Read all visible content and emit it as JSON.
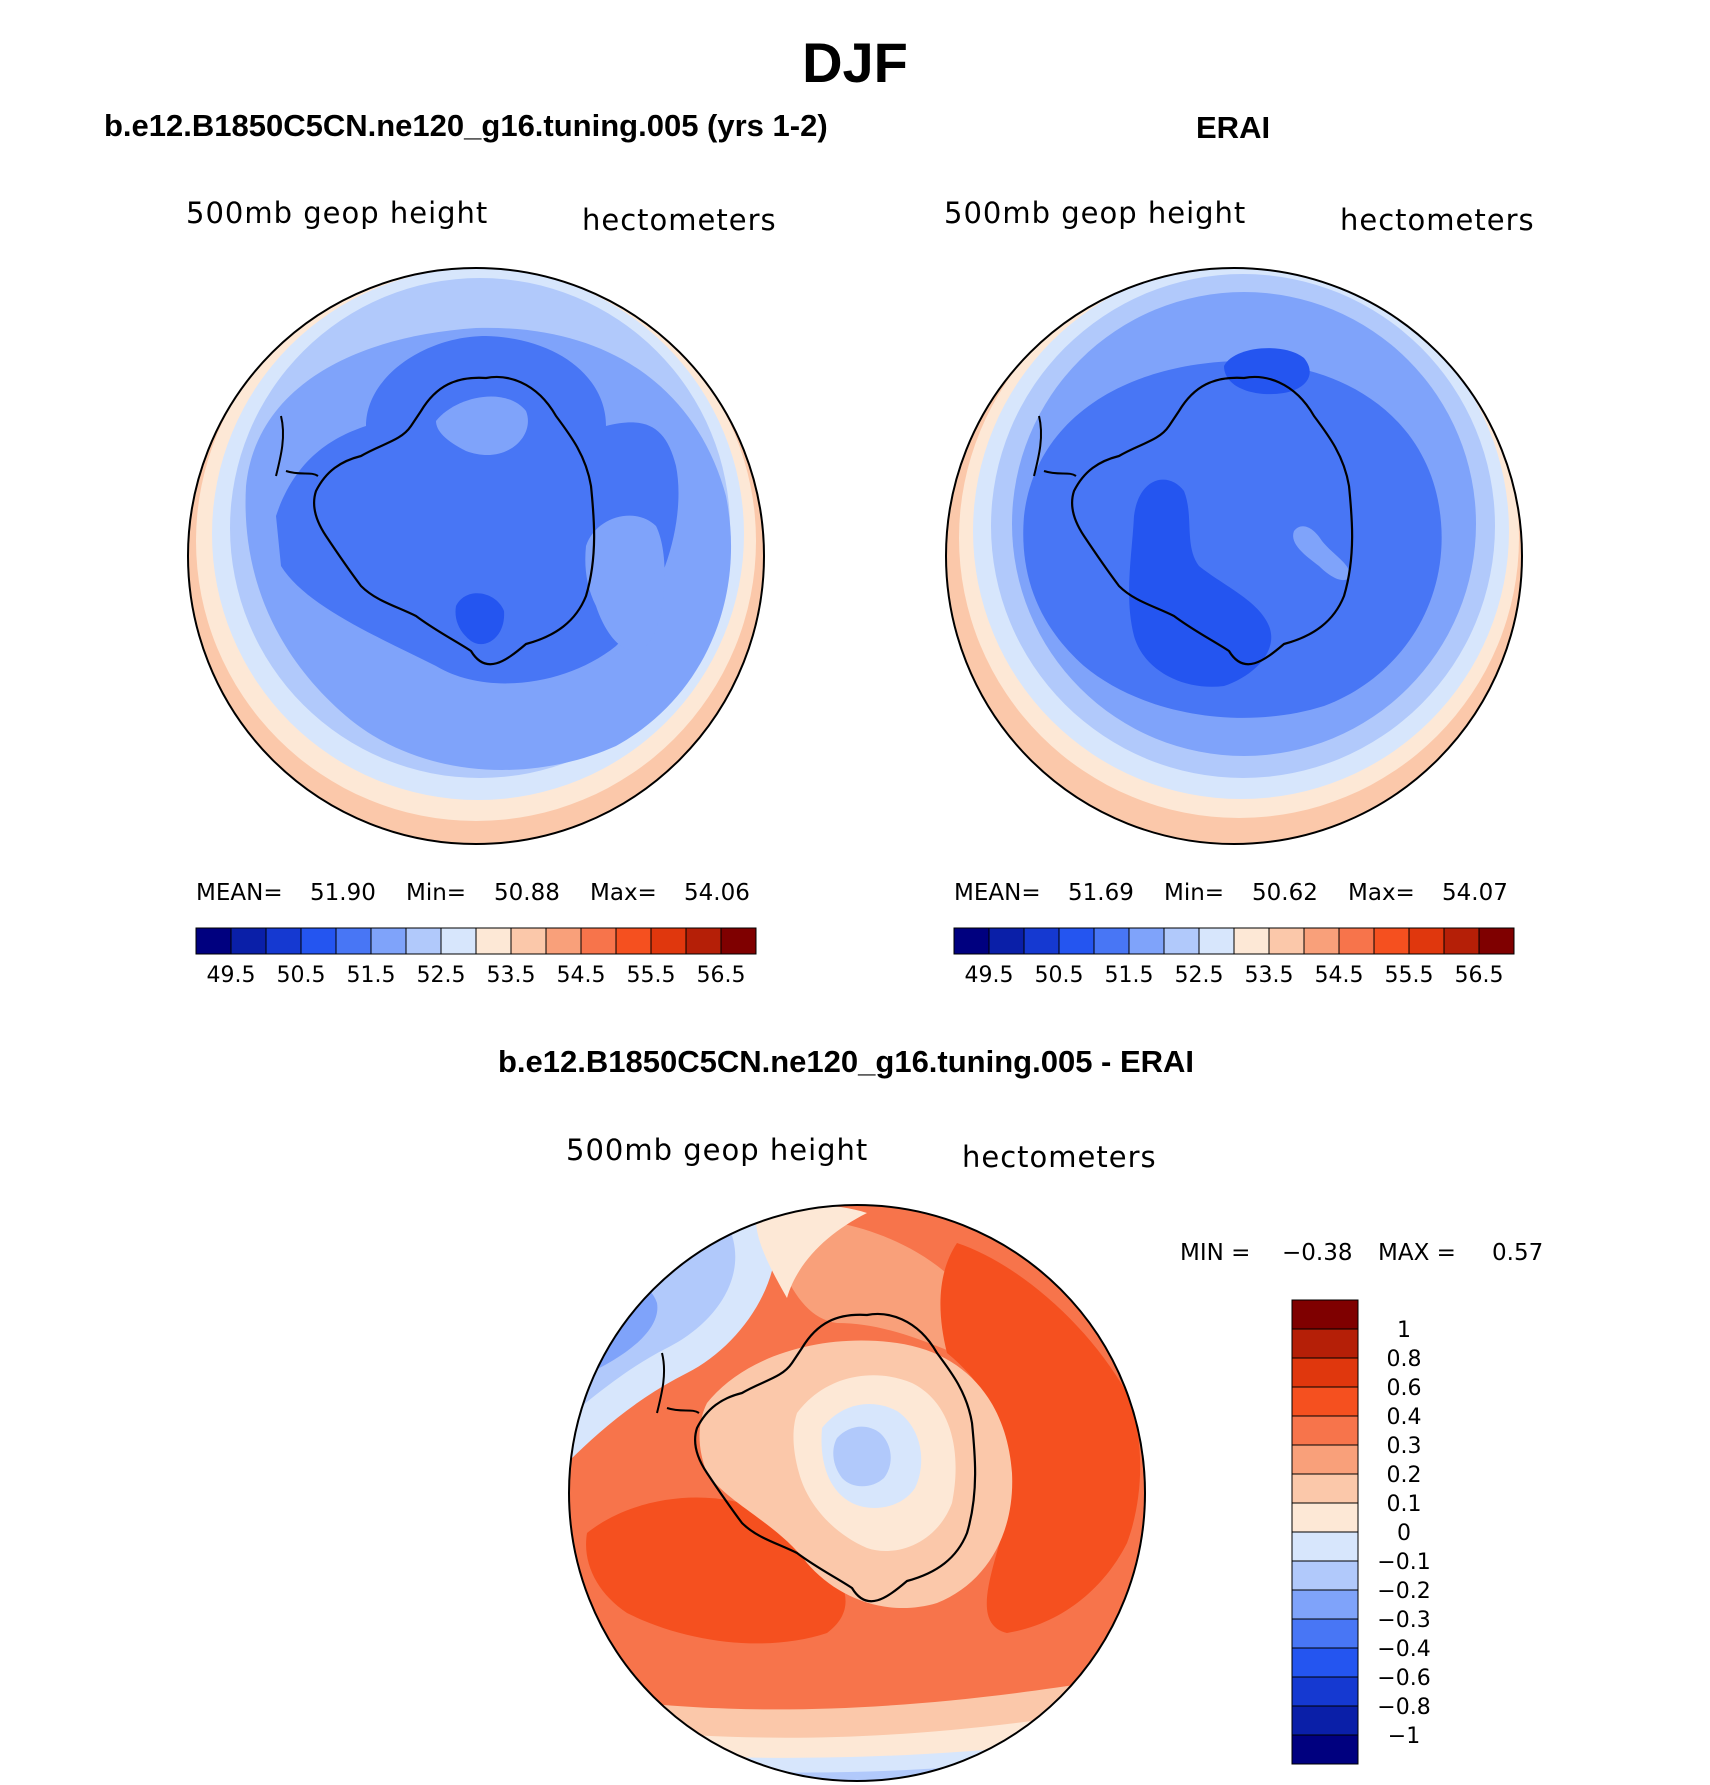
{
  "title": "DJF",
  "panels": [
    {
      "id": "model",
      "title": "b.e12.B1850C5CN.ne120_g16.tuning.005 (yrs 1-2)",
      "left_label": "500mb geop height",
      "right_label": "hectometers",
      "stats": {
        "mean_label": "MEAN=",
        "mean": "51.90",
        "min_label": "Min=",
        "min": "50.88",
        "max_label": "Max=",
        "max": "54.06"
      }
    },
    {
      "id": "obs",
      "title": "ERAI",
      "left_label": "500mb geop height",
      "right_label": "hectometers",
      "stats": {
        "mean_label": "MEAN=",
        "mean": "51.69",
        "min_label": "Min=",
        "min": "50.62",
        "max_label": "Max=",
        "max": "54.07"
      }
    },
    {
      "id": "diff",
      "title": "b.e12.B1850C5CN.ne120_g16.tuning.005 - ERAI",
      "left_label": "500mb geop height",
      "right_label": "hectometers",
      "stats": {
        "min_label": "MIN =",
        "min": "−0.38",
        "max_label": "MAX =",
        "max": "0.57"
      }
    }
  ],
  "colorbar_abs": {
    "colors": [
      "#00007f",
      "#0a1fa8",
      "#1539d1",
      "#2455f0",
      "#4876f5",
      "#7fa3fa",
      "#b1c9fb",
      "#d7e6fc",
      "#fde8d6",
      "#fbc8aa",
      "#f9a07a",
      "#f7744b",
      "#f5501f",
      "#e0370d",
      "#b51f07",
      "#7f0000"
    ],
    "tick_labels": [
      "49.5",
      "50.5",
      "51.5",
      "52.5",
      "53.5",
      "54.5",
      "55.5",
      "56.5"
    ]
  },
  "colorbar_diff": {
    "colors": [
      "#00007f",
      "#0a1fa8",
      "#1539d1",
      "#2455f0",
      "#4876f5",
      "#7fa3fa",
      "#b1c9fb",
      "#d7e6fc",
      "#fde8d6",
      "#fbc8aa",
      "#f9a07a",
      "#f7744b",
      "#f5501f",
      "#e0370d",
      "#b51f07",
      "#7f0000"
    ],
    "tick_labels": [
      "1",
      "0.8",
      "0.6",
      "0.4",
      "0.3",
      "0.2",
      "0.1",
      "0",
      "−0.1",
      "−0.2",
      "−0.3",
      "−0.4",
      "−0.6",
      "−0.8",
      "−1"
    ]
  },
  "chart_data": [
    {
      "type": "heatmap",
      "projection": "south polar stereographic",
      "title": "b.e12.B1850C5CN.ne120_g16.tuning.005 (yrs 1-2)",
      "variable": "500mb geop height",
      "units": "hectometers",
      "contour_levels": [
        49.5,
        50,
        50.5,
        51,
        51.5,
        52,
        52.5,
        53,
        53.5,
        54,
        54.5,
        55,
        55.5,
        56,
        56.5
      ],
      "mean": 51.9,
      "min": 50.88,
      "max": 54.06
    },
    {
      "type": "heatmap",
      "projection": "south polar stereographic",
      "title": "ERAI",
      "variable": "500mb geop height",
      "units": "hectometers",
      "contour_levels": [
        49.5,
        50,
        50.5,
        51,
        51.5,
        52,
        52.5,
        53,
        53.5,
        54,
        54.5,
        55,
        55.5,
        56,
        56.5
      ],
      "mean": 51.69,
      "min": 50.62,
      "max": 54.07
    },
    {
      "type": "heatmap",
      "projection": "south polar stereographic",
      "title": "b.e12.B1850C5CN.ne120_g16.tuning.005 - ERAI",
      "variable": "500mb geop height",
      "units": "hectometers",
      "contour_levels": [
        -1,
        -0.8,
        -0.6,
        -0.4,
        -0.3,
        -0.2,
        -0.1,
        0,
        0.1,
        0.2,
        0.3,
        0.4,
        0.6,
        0.8,
        1
      ],
      "min": -0.38,
      "max": 0.57
    }
  ]
}
